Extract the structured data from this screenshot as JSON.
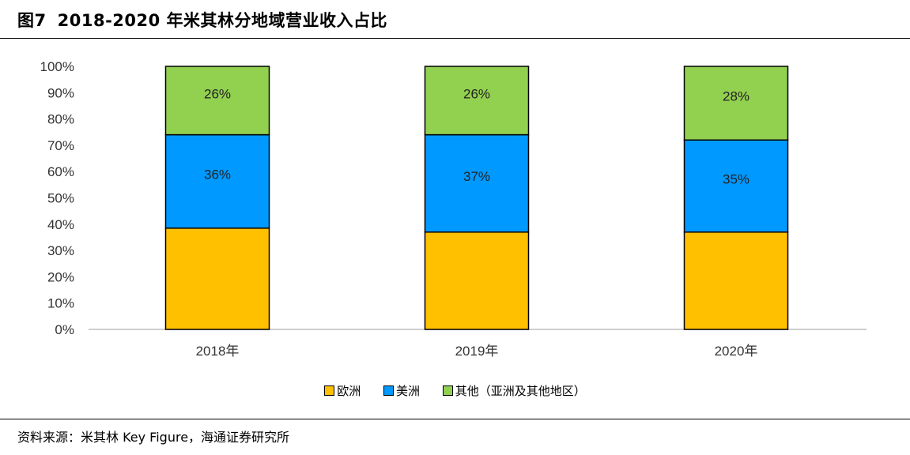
{
  "header": {
    "figure_number": "图7",
    "title": "2018-2020 年米其林分地域营业收入占比"
  },
  "footer": {
    "source": "资料来源：米其林 Key Figure，海通证券研究所"
  },
  "colors": {
    "europe": "#FFC000",
    "america": "#0099FF",
    "other": "#92D050",
    "axis": "#BFBFBF"
  },
  "chart_data": {
    "type": "bar",
    "stacked": true,
    "percent_stacked": true,
    "categories": [
      "2018年",
      "2019年",
      "2020年"
    ],
    "series": [
      {
        "name": "欧洲",
        "values": [
          38.5,
          37,
          37
        ],
        "labels": [
          "",
          "",
          ""
        ]
      },
      {
        "name": "美洲",
        "values": [
          35.5,
          37,
          35
        ],
        "labels": [
          "36%",
          "37%",
          "35%"
        ]
      },
      {
        "name": "其他（亚洲及其他地区）",
        "values": [
          26,
          26,
          28
        ],
        "labels": [
          "26%",
          "26%",
          "28%"
        ]
      }
    ],
    "y_ticks": [
      "0%",
      "10%",
      "20%",
      "30%",
      "40%",
      "50%",
      "60%",
      "70%",
      "80%",
      "90%",
      "100%"
    ],
    "ylim": [
      0,
      100
    ],
    "grid": false,
    "legend_position": "bottom"
  }
}
